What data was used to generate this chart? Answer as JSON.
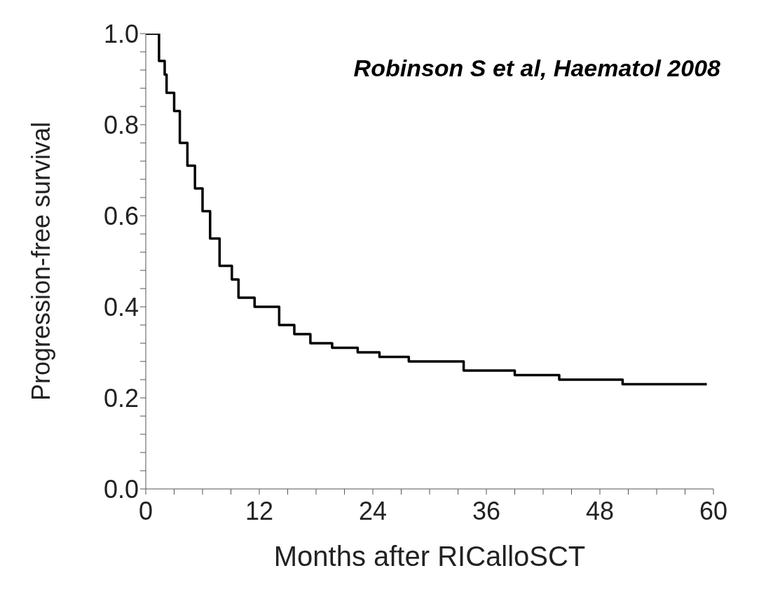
{
  "chart_data": {
    "type": "step",
    "xlabel": "Months after RICalloSCT",
    "ylabel": "Progression-free survival",
    "annotations": [
      "Robinson S et al, Haematol 2008"
    ],
    "x": [
      0,
      1.4,
      2.0,
      2.2,
      3.0,
      3.6,
      4.4,
      5.2,
      6.0,
      6.8,
      7.8,
      9.1,
      9.8,
      11.5,
      12.3,
      14.1,
      15.7,
      17.4,
      19.7,
      22.4,
      24.7,
      27.8,
      31.6,
      33.6,
      39.0,
      43.7,
      50.4,
      59.3
    ],
    "series": [
      {
        "color": "#000000",
        "values": [
          1.0,
          0.94,
          0.91,
          0.87,
          0.83,
          0.76,
          0.71,
          0.66,
          0.61,
          0.55,
          0.49,
          0.46,
          0.42,
          0.4,
          0.4,
          0.36,
          0.34,
          0.32,
          0.31,
          0.3,
          0.29,
          0.28,
          0.28,
          0.26,
          0.25,
          0.24,
          0.23,
          0.23
        ]
      }
    ],
    "xlim": [
      0,
      60
    ],
    "xticks": [
      0,
      {
        "value": 3,
        "label": null
      },
      {
        "value": 6,
        "label": null
      },
      {
        "value": 9,
        "label": null
      },
      12,
      {
        "value": 15,
        "label": null
      },
      {
        "value": 18,
        "label": null
      },
      {
        "value": 21,
        "label": null
      },
      24,
      {
        "value": 27,
        "label": null
      },
      {
        "value": 30,
        "label": null
      },
      {
        "value": 33,
        "label": null
      },
      36,
      {
        "value": 39,
        "label": null
      },
      {
        "value": 42,
        "label": null
      },
      {
        "value": 45,
        "label": null
      },
      48,
      {
        "value": 51,
        "label": null
      },
      {
        "value": 54,
        "label": null
      },
      {
        "value": 57,
        "label": null
      },
      60
    ],
    "ylim": [
      0,
      1
    ],
    "yticks": [
      {
        "value": 0,
        "label": "0.0"
      },
      {
        "value": 0.04,
        "label": null
      },
      {
        "value": 0.08,
        "label": null
      },
      {
        "value": 0.12,
        "label": null
      },
      {
        "value": 0.16,
        "label": null
      },
      {
        "value": 0.2,
        "label": "0.2"
      },
      {
        "value": 0.24,
        "label": null
      },
      {
        "value": 0.28,
        "label": null
      },
      {
        "value": 0.32,
        "label": null
      },
      {
        "value": 0.36,
        "label": null
      },
      {
        "value": 0.4,
        "label": "0.4"
      },
      {
        "value": 0.44,
        "label": null
      },
      {
        "value": 0.48,
        "label": null
      },
      {
        "value": 0.52,
        "label": null
      },
      {
        "value": 0.56,
        "label": null
      },
      {
        "value": 0.6,
        "label": "0.6"
      },
      {
        "value": 0.64,
        "label": null
      },
      {
        "value": 0.68,
        "label": null
      },
      {
        "value": 0.72,
        "label": null
      },
      {
        "value": 0.76,
        "label": null
      },
      {
        "value": 0.8,
        "label": "0.8"
      },
      {
        "value": 0.84,
        "label": null
      },
      {
        "value": 0.88,
        "label": null
      },
      {
        "value": 0.92,
        "label": null
      },
      {
        "value": 0.96,
        "label": null
      },
      {
        "value": 1,
        "label": "1.0"
      }
    ],
    "grid": false,
    "legend": false,
    "marker": "none",
    "line_style": "solid"
  }
}
